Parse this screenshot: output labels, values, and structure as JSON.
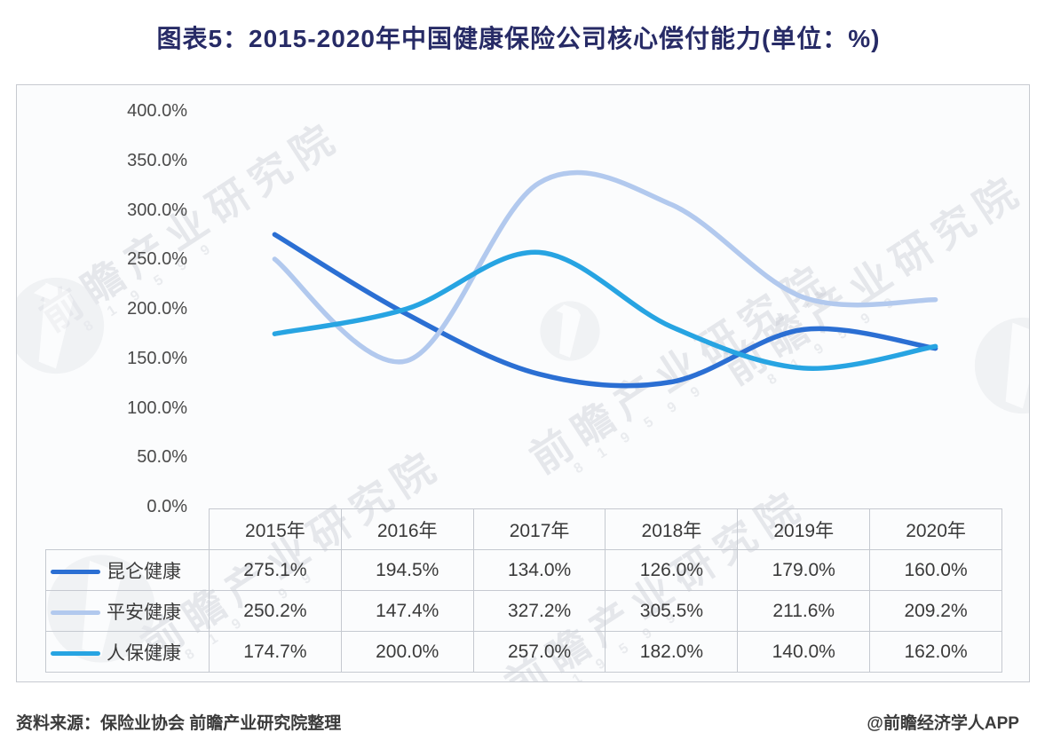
{
  "title": "图表5：2015-2020年中国健康保险公司核心偿付能力(单位：%)",
  "source_note": "资料来源：保险业协会 前瞻产业研究院整理",
  "credit": "@前瞻经济学人APP",
  "watermark": {
    "text": "前瞻产业研究院",
    "digits": "8 1 9 5 9 9"
  },
  "colors": {
    "title": "#272b66",
    "axis_text": "#4a4a4a",
    "table_border": "#c5c9d0",
    "series_kunlun": "#2b6fd3",
    "series_pingan": "#b2c9ee",
    "series_renbao": "#27a4e2"
  },
  "chart_data": {
    "type": "line",
    "smooth": true,
    "grid": false,
    "legend_position": "table-left",
    "title": "图表5：2015-2020年中国健康保险公司核心偿付能力(单位：%)",
    "xlabel": "",
    "ylabel": "",
    "categories": [
      "2015年",
      "2016年",
      "2017年",
      "2018年",
      "2019年",
      "2020年"
    ],
    "series": [
      {
        "name": "昆仑健康",
        "color": "#2b6fd3",
        "values": [
          275.1,
          194.5,
          134.0,
          126.0,
          179.0,
          160.0
        ]
      },
      {
        "name": "平安健康",
        "color": "#b2c9ee",
        "values": [
          250.2,
          147.4,
          327.2,
          305.5,
          211.6,
          209.2
        ]
      },
      {
        "name": "人保健康",
        "color": "#27a4e2",
        "values": [
          174.7,
          200.0,
          257.0,
          182.0,
          140.0,
          162.0
        ]
      }
    ],
    "ylim": [
      0,
      400
    ],
    "ytick_step": 50,
    "ytick_labels": [
      "400.0%",
      "350.0%",
      "300.0%",
      "250.0%",
      "200.0%",
      "150.0%",
      "100.0%",
      "50.0%",
      "0.0%"
    ],
    "value_suffix": "%"
  }
}
